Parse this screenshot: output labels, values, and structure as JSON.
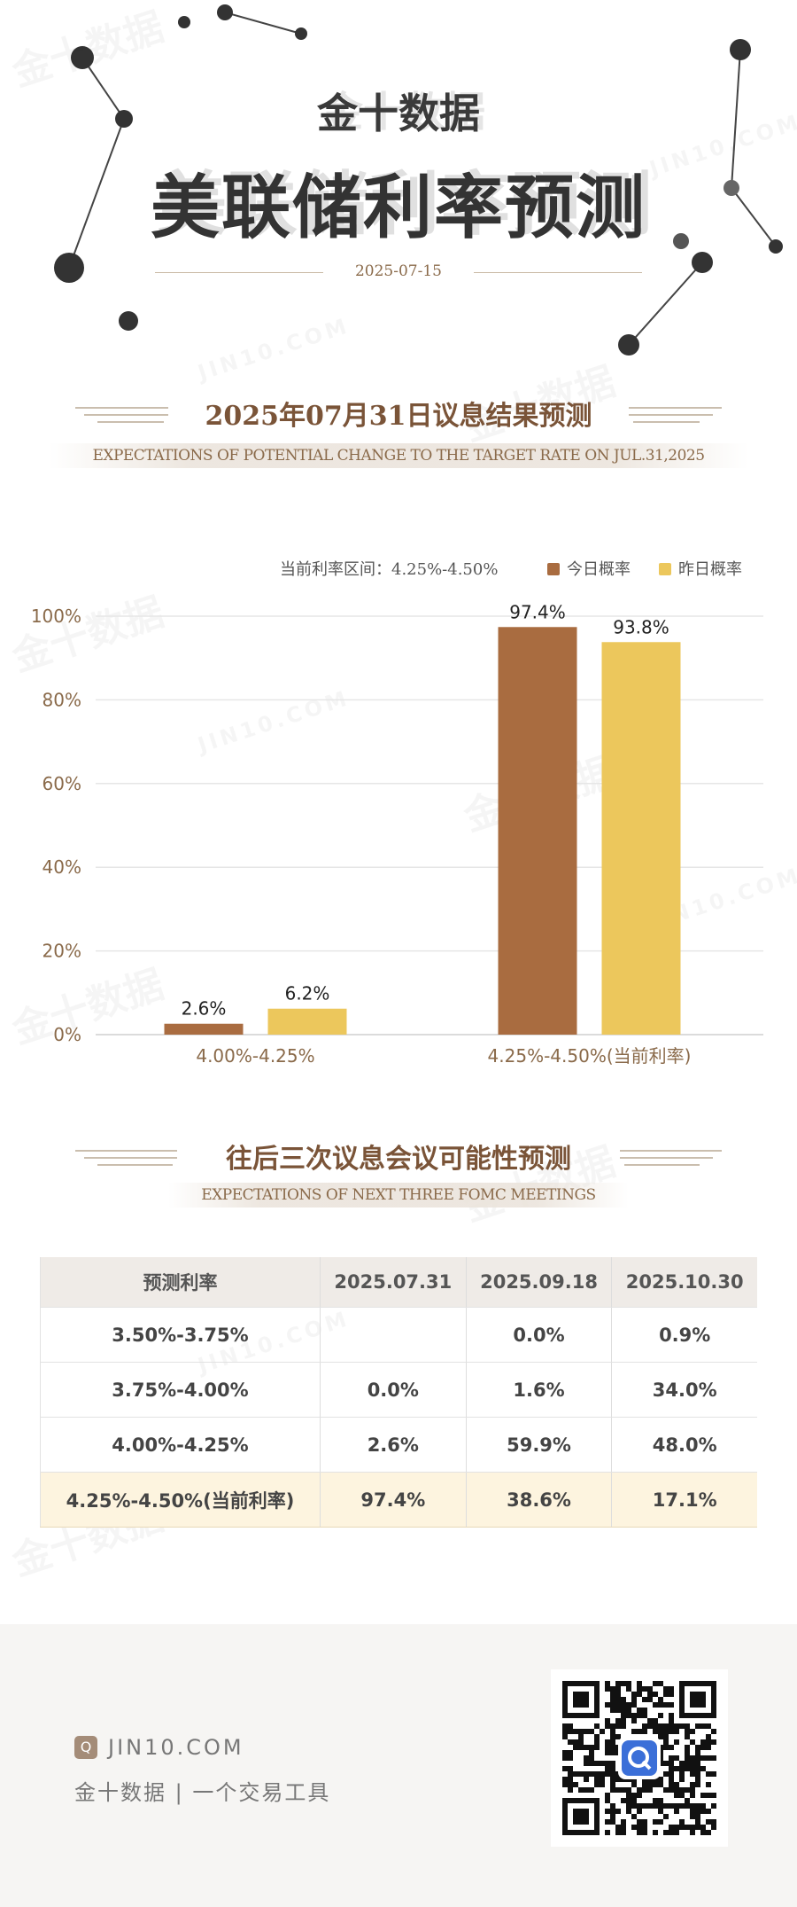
{
  "header": {
    "brand": "金十数据",
    "title": "美联储利率预测",
    "date": "2025-07-15"
  },
  "section1": {
    "title": "2025年07月31日议息结果预测",
    "subtitle": "EXPECTATIONS OF POTENTIAL CHANGE TO THE TARGET RATE ON JUL.31,2025"
  },
  "legend": {
    "current_rate_label": "当前利率区间：4.25%-4.50%",
    "today_label": "今日概率",
    "yesterday_label": "昨日概率"
  },
  "colors": {
    "today": "#a96c40",
    "yesterday": "#ecc75c",
    "accent": "#7a5438"
  },
  "chart_data": {
    "type": "bar",
    "categories": [
      "4.00%-4.25%",
      "4.25%-4.50%(当前利率)"
    ],
    "series": [
      {
        "name": "今日概率",
        "values": [
          2.6,
          97.4
        ]
      },
      {
        "name": "昨日概率",
        "values": [
          6.2,
          93.8
        ]
      }
    ],
    "data_labels": [
      [
        "2.6%",
        "97.4%"
      ],
      [
        "6.2%",
        "93.8%"
      ]
    ],
    "yticks": [
      "0%",
      "20%",
      "40%",
      "60%",
      "80%",
      "100%"
    ],
    "ylim": [
      0,
      100
    ],
    "legend_position": "top-right",
    "grid": true
  },
  "section2": {
    "title": "往后三次议息会议可能性预测",
    "subtitle": "EXPECTATIONS OF NEXT THREE FOMC MEETINGS"
  },
  "table": {
    "headers": [
      "预测利率",
      "2025.07.31",
      "2025.09.18",
      "2025.10.30"
    ],
    "rows": [
      [
        "3.50%-3.75%",
        "",
        "0.0%",
        "0.9%"
      ],
      [
        "3.75%-4.00%",
        "0.0%",
        "1.6%",
        "34.0%"
      ],
      [
        "4.00%-4.25%",
        "2.6%",
        "59.9%",
        "48.0%"
      ],
      [
        "4.25%-4.50%(当前利率)",
        "97.4%",
        "38.6%",
        "17.1%"
      ]
    ]
  },
  "footer": {
    "site": "JIN10.COM",
    "logo_glyph": "Q",
    "tagline": "金十数据  |  一个交易工具"
  }
}
